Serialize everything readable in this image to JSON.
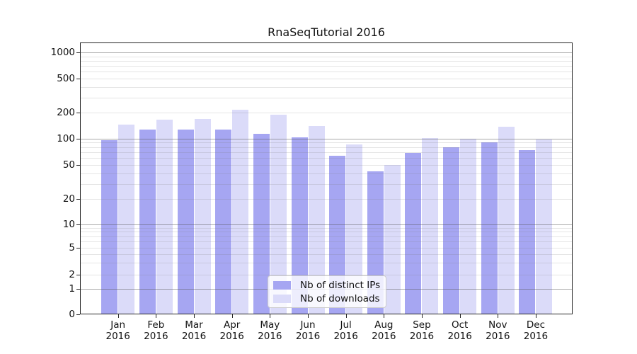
{
  "chart_data": {
    "type": "bar",
    "title": "RnaSeqTutorial 2016",
    "categories": [
      "Jan",
      "Feb",
      "Mar",
      "Apr",
      "May",
      "Jun",
      "Jul",
      "Aug",
      "Sep",
      "Oct",
      "Nov",
      "Dec"
    ],
    "year_label": "2016",
    "series": [
      {
        "name": "Nb of distinct IPs",
        "color": "#a6a6f2",
        "values": [
          96,
          128,
          126,
          127,
          114,
          102,
          64,
          42,
          68,
          79,
          91,
          74
        ]
      },
      {
        "name": "Nb of downloads",
        "color": "#dbdbf9",
        "values": [
          146,
          164,
          168,
          215,
          189,
          140,
          86,
          50,
          101,
          100,
          137,
          97
        ]
      }
    ],
    "y_axis": {
      "scale": "log with 0 baseline",
      "ticks": [
        1000,
        500,
        200,
        100,
        50,
        20,
        10,
        5,
        2,
        1,
        0
      ],
      "range": [
        0,
        1000
      ]
    },
    "grid": "horizontal log gridlines drawn over bars",
    "legend": {
      "position": "lower center"
    }
  },
  "colors": {
    "bar_distinct_ips": "#a6a6f2",
    "bar_downloads": "#dbdbf9",
    "grid_minor": "rgba(125,125,125,0.2)",
    "grid_major": "rgba(85,85,85,0.5)",
    "spine": "#262626",
    "text": "#111111",
    "legend_border": "#cccccc",
    "legend_background": "rgba(255,255,255,0.8)"
  }
}
